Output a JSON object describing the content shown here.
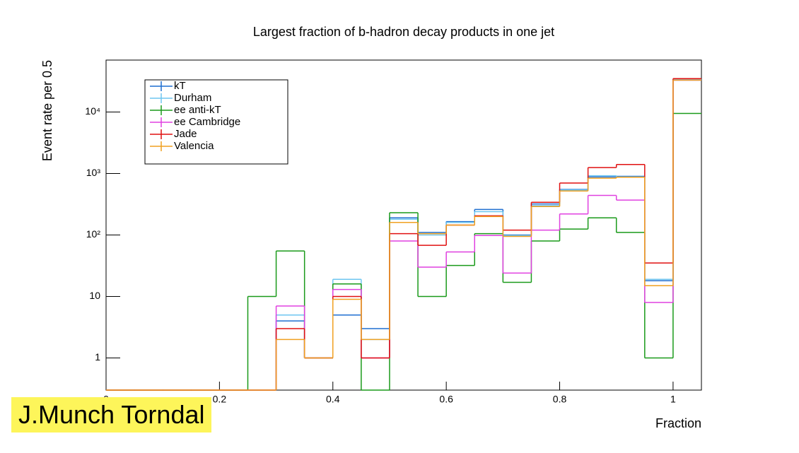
{
  "chart_data": {
    "type": "histogram",
    "title": "Largest fraction of b-hadron decay products in one jet",
    "x_label": "Fraction",
    "y_label": "Event rate per 0.5",
    "bins": [
      0,
      0.05,
      0.1,
      0.15,
      0.2,
      0.25,
      0.3,
      0.35,
      0.4,
      0.45,
      0.5,
      0.55,
      0.6,
      0.65,
      0.7,
      0.75,
      0.8,
      0.85,
      0.9,
      0.95,
      1.0,
      1.05
    ],
    "series": [
      {
        "name": "kT",
        "color": "#1f6fd0",
        "values": [
          0,
          0,
          0,
          0,
          0,
          0,
          4,
          1,
          5,
          3,
          190,
          110,
          165,
          260,
          100,
          320,
          550,
          880,
          900,
          18,
          33000
        ]
      },
      {
        "name": "Durham",
        "color": "#6ec6f0",
        "values": [
          0,
          0,
          0,
          0,
          0,
          0,
          5,
          1,
          19,
          2,
          180,
          100,
          160,
          240,
          98,
          300,
          540,
          920,
          880,
          19,
          34000
        ]
      },
      {
        "name": "ee anti-kT",
        "color": "#1a9a1a",
        "values": [
          0,
          0,
          0,
          0,
          0,
          10,
          55,
          1,
          16,
          0,
          230,
          10,
          32,
          105,
          17,
          80,
          125,
          190,
          110,
          1,
          9500
        ]
      },
      {
        "name": "ee Cambridge",
        "color": "#e040e0",
        "values": [
          0,
          0,
          0,
          0,
          0,
          0,
          7,
          1,
          13,
          1,
          80,
          30,
          53,
          98,
          24,
          120,
          220,
          440,
          370,
          8,
          33000
        ]
      },
      {
        "name": "Jade",
        "color": "#e01010",
        "values": [
          0,
          0,
          0,
          0,
          0,
          0,
          3,
          1,
          10,
          1,
          105,
          68,
          145,
          205,
          120,
          340,
          700,
          1250,
          1400,
          35,
          35000
        ]
      },
      {
        "name": "Valencia",
        "color": "#f0a020",
        "values": [
          0,
          0,
          0,
          0,
          0,
          0,
          2,
          1,
          9,
          2,
          160,
          105,
          145,
          200,
          95,
          290,
          520,
          840,
          870,
          15,
          33000
        ]
      }
    ],
    "xlim": [
      0,
      1.05
    ],
    "xticks": [
      0,
      0.2,
      0.4,
      0.6,
      0.8,
      1
    ],
    "ylim": [
      0.3,
      70000
    ],
    "log_y": true,
    "yticks": [
      1,
      10,
      {
        "value": 100,
        "label": "10²"
      },
      {
        "value": 1000,
        "label": "10³"
      },
      {
        "value": 10000,
        "label": "10⁴"
      }
    ]
  },
  "watermark": "J.Munch Torndal"
}
